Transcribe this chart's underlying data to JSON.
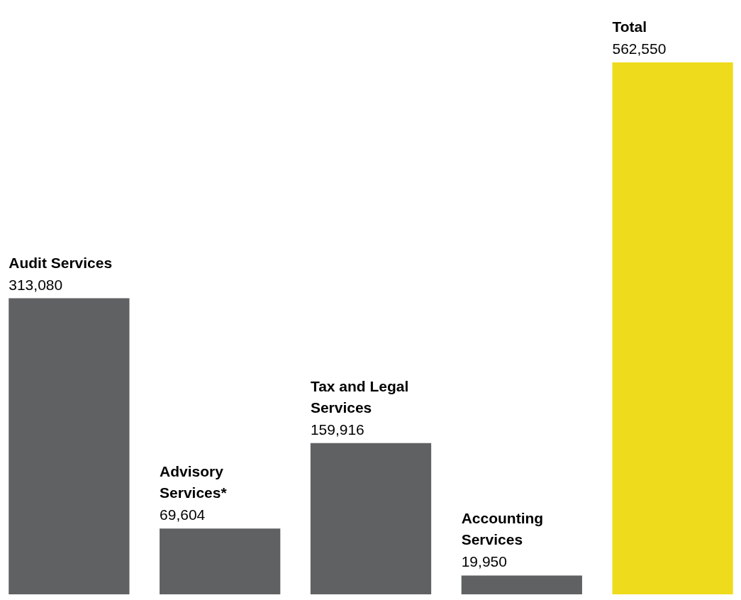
{
  "chart_data": {
    "type": "bar",
    "categories": [
      "Audit Services",
      "Advisory Services*",
      "Tax and Legal Services",
      "Accounting Services",
      "Total"
    ],
    "values": [
      313080,
      69604,
      159916,
      19950,
      562550
    ],
    "value_labels": [
      "313,080",
      "69,604",
      "159,916",
      "19,950",
      "562,550"
    ],
    "colors": [
      "#606163",
      "#606163",
      "#606163",
      "#606163",
      "#eedb1c"
    ]
  }
}
